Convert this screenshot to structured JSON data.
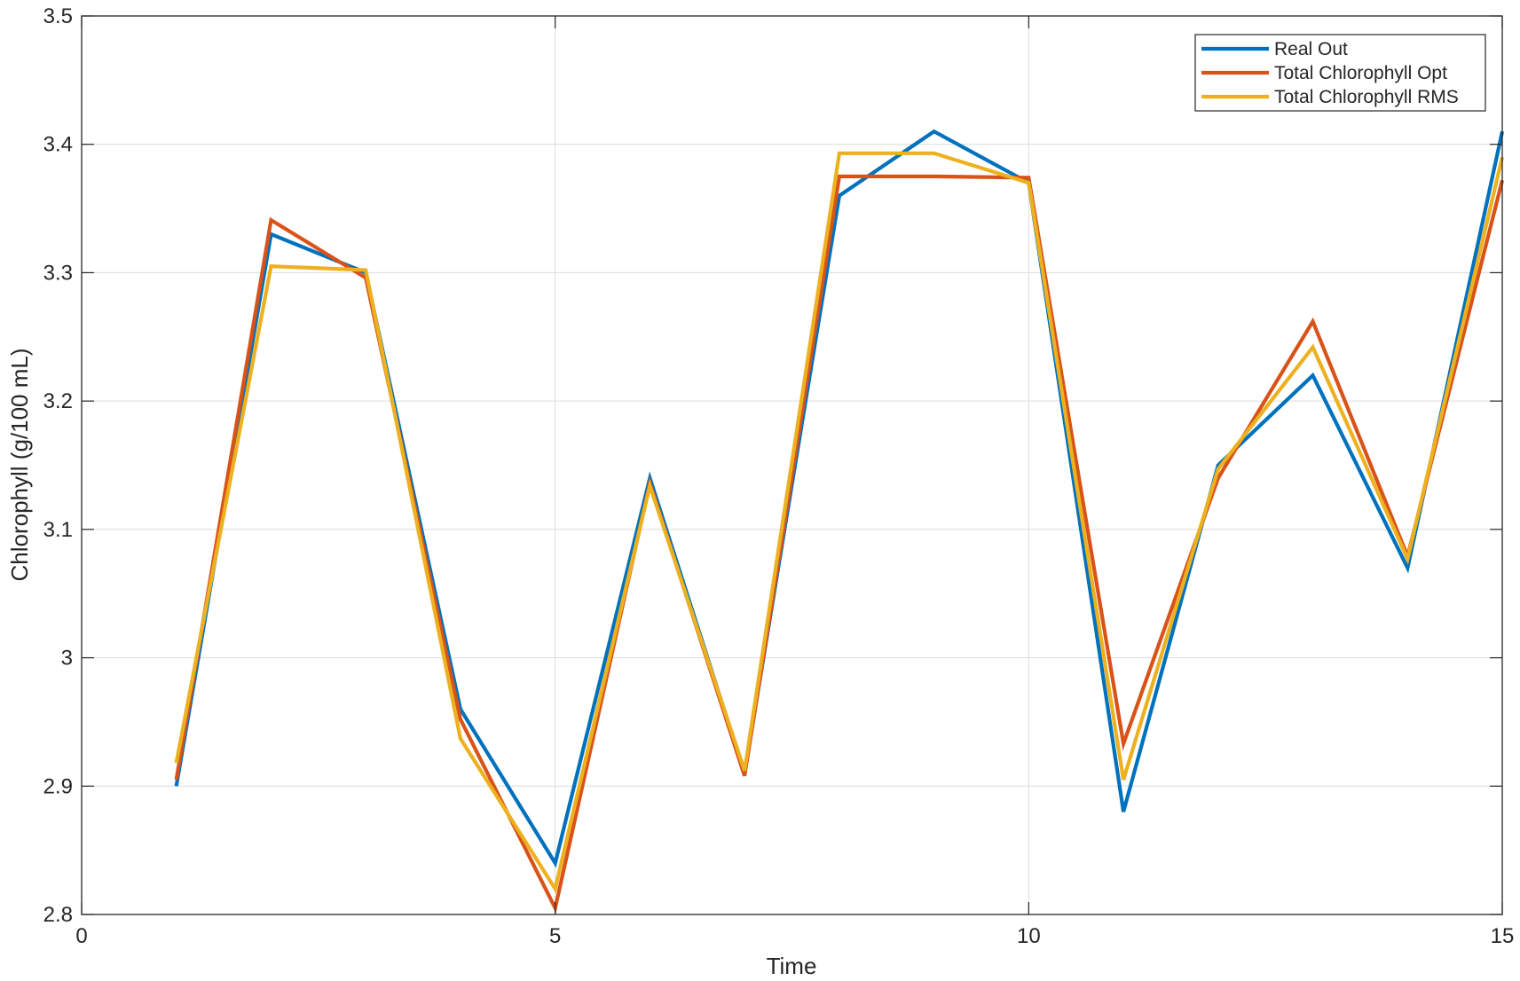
{
  "chart_data": {
    "type": "line",
    "title": "",
    "xlabel": "Time",
    "ylabel": "Chlorophyll (g/100 mL)",
    "xlim": [
      0,
      15
    ],
    "ylim": [
      2.8,
      3.5
    ],
    "xticks": [
      0,
      5,
      10,
      15
    ],
    "xtick_labels": [
      "0",
      "5",
      "10",
      "15"
    ],
    "yticks": [
      2.8,
      2.9,
      3.0,
      3.1,
      3.2,
      3.3,
      3.4,
      3.5
    ],
    "ytick_labels": [
      "2.8",
      "2.9",
      "3",
      "3.1",
      "3.2",
      "3.3",
      "3.4",
      "3.5"
    ],
    "grid": true,
    "legend_position": "top-right",
    "x": [
      1,
      2,
      3,
      4,
      5,
      6,
      7,
      8,
      9,
      10,
      11,
      12,
      13,
      14,
      15
    ],
    "series": [
      {
        "name": "Real Out",
        "color": "#0072BD",
        "values": [
          2.9,
          3.33,
          3.3,
          2.96,
          2.84,
          3.14,
          2.91,
          3.36,
          3.41,
          3.37,
          2.88,
          3.15,
          3.22,
          3.07,
          3.41
        ]
      },
      {
        "name": "Total Chlorophyll Opt",
        "color": "#D95319",
        "values": [
          2.905,
          3.341,
          3.296,
          2.952,
          2.805,
          3.136,
          2.908,
          3.375,
          3.375,
          3.374,
          2.933,
          3.14,
          3.262,
          3.079,
          3.372
        ]
      },
      {
        "name": "Total Chlorophyll RMS",
        "color": "#EDB120",
        "values": [
          2.918,
          3.305,
          3.302,
          2.937,
          2.82,
          3.134,
          2.912,
          3.393,
          3.393,
          3.37,
          2.905,
          3.147,
          3.242,
          3.077,
          3.39
        ]
      }
    ]
  }
}
